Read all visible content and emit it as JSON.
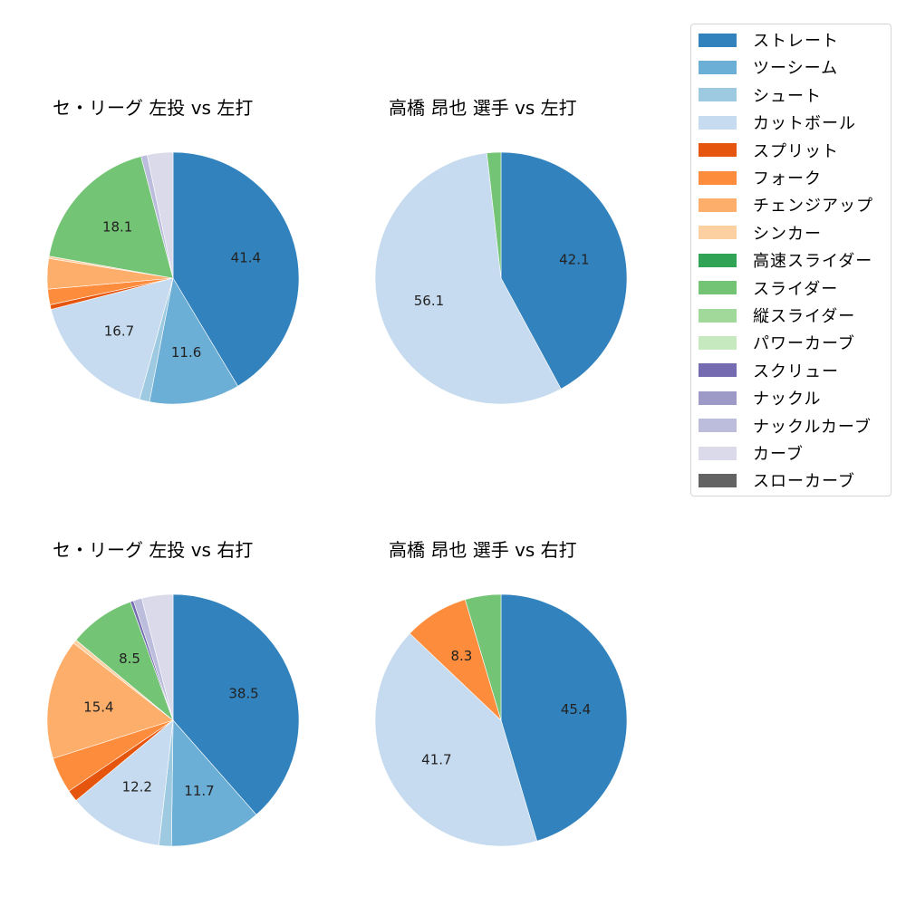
{
  "legend": {
    "items": [
      {
        "label": "ストレート",
        "color": "#3182bd"
      },
      {
        "label": "ツーシーム",
        "color": "#6baed6"
      },
      {
        "label": "シュート",
        "color": "#9ecae1"
      },
      {
        "label": "カットボール",
        "color": "#c6dbef"
      },
      {
        "label": "スプリット",
        "color": "#e6550d"
      },
      {
        "label": "フォーク",
        "color": "#fd8d3c"
      },
      {
        "label": "チェンジアップ",
        "color": "#fdae6b"
      },
      {
        "label": "シンカー",
        "color": "#fdd0a2"
      },
      {
        "label": "高速スライダー",
        "color": "#31a354"
      },
      {
        "label": "スライダー",
        "color": "#74c476"
      },
      {
        "label": "縦スライダー",
        "color": "#a1d99b"
      },
      {
        "label": "パワーカーブ",
        "color": "#c7e9c0"
      },
      {
        "label": "スクリュー",
        "color": "#756bb1"
      },
      {
        "label": "ナックル",
        "color": "#9e9ac8"
      },
      {
        "label": "ナックルカーブ",
        "color": "#bcbddc"
      },
      {
        "label": "カーブ",
        "color": "#dadaeb"
      },
      {
        "label": "スローカーブ",
        "color": "#636363"
      }
    ]
  },
  "charts": {
    "tl": {
      "title": "セ・リーグ 左投 vs 左打"
    },
    "tr": {
      "title": "高橋 昂也 選手 vs 左打"
    },
    "bl": {
      "title": "セ・リーグ 左投 vs 右打"
    },
    "br": {
      "title": "高橋 昂也 選手 vs 右打"
    }
  },
  "chart_data": [
    {
      "type": "pie",
      "title": "セ・リーグ 左投 vs 左打",
      "start_angle": 90,
      "direction": "clockwise",
      "categories": [
        "ストレート",
        "ツーシーム",
        "シュート",
        "カットボール",
        "スプリット",
        "フォーク",
        "チェンジアップ",
        "シンカー",
        "スライダー",
        "ナックルカーブ",
        "カーブ"
      ],
      "values": [
        41.4,
        11.6,
        1.3,
        16.7,
        0.6,
        2.0,
        3.9,
        0.3,
        18.1,
        0.8,
        3.3
      ],
      "labels_shown": [
        "41.4",
        "11.6",
        "",
        "16.7",
        "",
        "",
        "",
        "",
        "18.1",
        "",
        ""
      ]
    },
    {
      "type": "pie",
      "title": "高橋 昂也 選手 vs 左打",
      "start_angle": 90,
      "direction": "clockwise",
      "categories": [
        "ストレート",
        "カットボール",
        "スライダー"
      ],
      "values": [
        42.1,
        56.1,
        1.8
      ],
      "labels_shown": [
        "42.1",
        "56.1",
        ""
      ]
    },
    {
      "type": "pie",
      "title": "セ・リーグ 左投 vs 右打",
      "start_angle": 90,
      "direction": "clockwise",
      "categories": [
        "ストレート",
        "ツーシーム",
        "シュート",
        "カットボール",
        "スプリット",
        "フォーク",
        "チェンジアップ",
        "シンカー",
        "スライダー",
        "スクリュー",
        "ナックルカーブ",
        "カーブ"
      ],
      "values": [
        38.5,
        11.7,
        1.6,
        12.2,
        1.5,
        4.6,
        15.4,
        0.5,
        8.5,
        0.4,
        1.1,
        4.0
      ],
      "labels_shown": [
        "38.5",
        "11.7",
        "",
        "12.2",
        "",
        "",
        "15.4",
        "",
        "8.5",
        "",
        "",
        ""
      ]
    },
    {
      "type": "pie",
      "title": "高橋 昂也 選手 vs 右打",
      "start_angle": 90,
      "direction": "clockwise",
      "categories": [
        "ストレート",
        "カットボール",
        "フォーク",
        "スライダー"
      ],
      "values": [
        45.4,
        41.7,
        8.3,
        4.6
      ],
      "labels_shown": [
        "45.4",
        "41.7",
        "8.3",
        ""
      ]
    }
  ]
}
